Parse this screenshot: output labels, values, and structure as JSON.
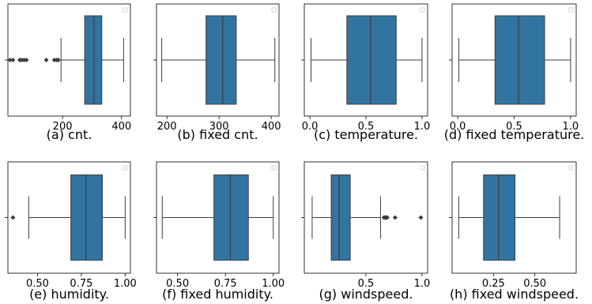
{
  "chart_data": [
    {
      "type": "box",
      "caption": "(a) cnt.",
      "xlim": [
        15,
        430
      ],
      "ticks": [
        {
          "value": 200,
          "label": "200"
        },
        {
          "value": 400,
          "label": "400"
        }
      ],
      "box": {
        "whisker_low": 195,
        "q1": 275,
        "median": 307,
        "q3": 333,
        "whisker_high": 407
      },
      "outliers": [
        22,
        32,
        55,
        62,
        70,
        78,
        145,
        172,
        180,
        186
      ]
    },
    {
      "type": "box",
      "caption": "(b) fixed cnt.",
      "xlim": [
        180,
        415
      ],
      "ticks": [
        {
          "value": 200,
          "label": "200"
        },
        {
          "value": 300,
          "label": "300"
        },
        {
          "value": 400,
          "label": "400"
        }
      ],
      "box": {
        "whisker_low": 190,
        "q1": 275,
        "median": 307,
        "q3": 333,
        "whisker_high": 407
      },
      "outliers": []
    },
    {
      "type": "box",
      "caption": "(c) temperature.",
      "xlim": [
        -0.05,
        1.05
      ],
      "ticks": [
        {
          "value": 0.0,
          "label": "0.0"
        },
        {
          "value": 0.5,
          "label": "0.5"
        },
        {
          "value": 1.0,
          "label": "1.0"
        }
      ],
      "box": {
        "whisker_low": 0.01,
        "q1": 0.33,
        "median": 0.54,
        "q3": 0.77,
        "whisker_high": 1.0
      },
      "outliers": []
    },
    {
      "type": "box",
      "caption": "(d) fixed temperature.",
      "xlim": [
        -0.05,
        1.05
      ],
      "ticks": [
        {
          "value": 0.0,
          "label": "0.0"
        },
        {
          "value": 0.5,
          "label": "0.5"
        },
        {
          "value": 1.0,
          "label": "1.0"
        }
      ],
      "box": {
        "whisker_low": 0.01,
        "q1": 0.33,
        "median": 0.54,
        "q3": 0.77,
        "whisker_high": 1.0
      },
      "outliers": []
    },
    {
      "type": "box",
      "caption": "(e) humidity.",
      "xlim": [
        0.331,
        1.03
      ],
      "ticks": [
        {
          "value": 0.5,
          "label": "0.50"
        },
        {
          "value": 0.75,
          "label": "0.75"
        },
        {
          "value": 1.0,
          "label": "1.00"
        }
      ],
      "box": {
        "whisker_low": 0.45,
        "q1": 0.69,
        "median": 0.776,
        "q3": 0.87,
        "whisker_high": 1.0
      },
      "outliers": [
        0.36
      ]
    },
    {
      "type": "box",
      "caption": "(f) fixed humidity.",
      "xlim": [
        0.39,
        1.03
      ],
      "ticks": [
        {
          "value": 0.5,
          "label": "0.50"
        },
        {
          "value": 0.75,
          "label": "0.75"
        },
        {
          "value": 1.0,
          "label": "1.00"
        }
      ],
      "box": {
        "whisker_low": 0.42,
        "q1": 0.69,
        "median": 0.776,
        "q3": 0.87,
        "whisker_high": 1.0
      },
      "outliers": []
    },
    {
      "type": "box",
      "caption": "(g) windspeed.",
      "xlim": [
        -0.05,
        1.05
      ],
      "ticks": [
        {
          "value": 0.5,
          "label": "0.5"
        },
        {
          "value": 1.0,
          "label": "1.0"
        }
      ],
      "box": {
        "whisker_low": 0.02,
        "q1": 0.19,
        "median": 0.26,
        "q3": 0.36,
        "whisker_high": 0.63
      },
      "outliers": [
        0.66,
        0.67,
        0.68,
        0.69,
        0.76,
        0.99
      ]
    },
    {
      "type": "box",
      "caption": "(h) fixed windspeed.",
      "xlim": [
        0.0,
        0.75
      ],
      "ticks": [
        {
          "value": 0.25,
          "label": "0.25"
        },
        {
          "value": 0.5,
          "label": "0.50"
        }
      ],
      "box": {
        "whisker_low": 0.04,
        "q1": 0.19,
        "median": 0.28,
        "q3": 0.38,
        "whisker_high": 0.65
      },
      "outliers": []
    }
  ],
  "colors": {
    "box_fill": "#3274a1",
    "box_edge": "#3d3d3d",
    "axis": "#000000",
    "legend_border": "#cccccc"
  }
}
